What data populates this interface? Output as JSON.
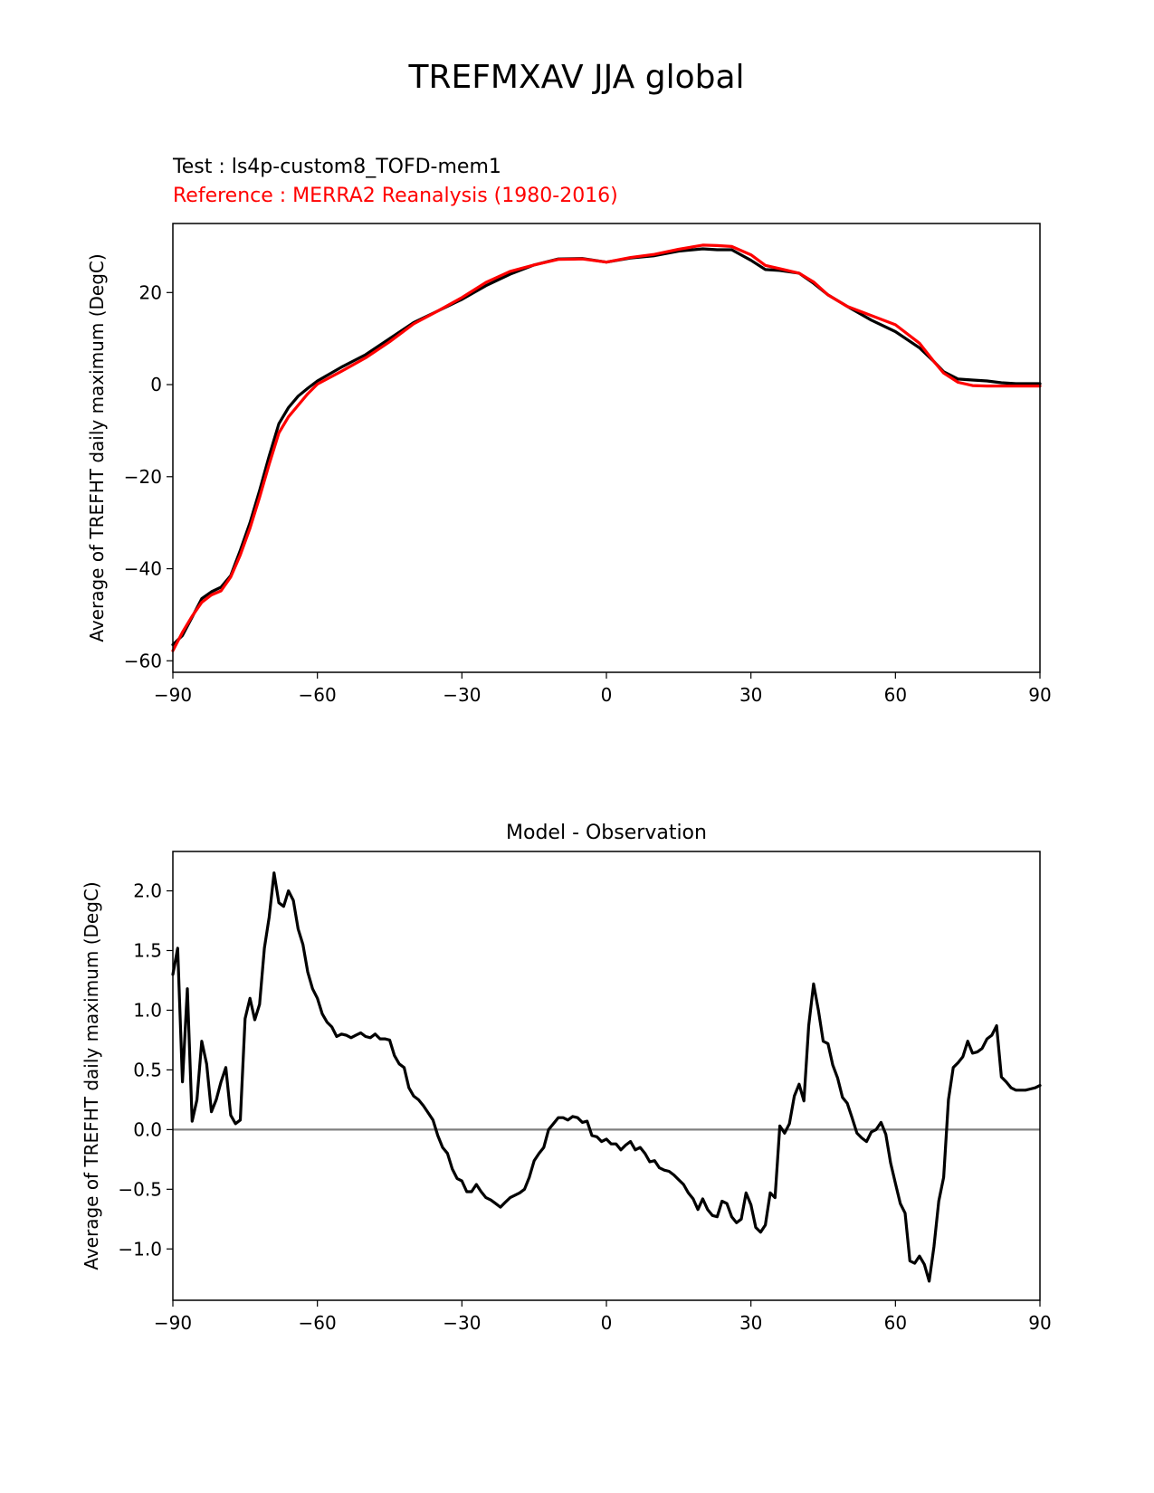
{
  "figure": {
    "title": "TREFMXAV JJA global"
  },
  "chart_data": [
    {
      "type": "line",
      "test_label": "Test : ls4p-custom8_TOFD-mem1",
      "reference_label": "Reference : MERRA2 Reanalysis (1980-2016)",
      "title": "",
      "xlabel": "",
      "ylabel": "Average of TREFHT daily maximum (DegC)",
      "xlim": [
        -90,
        90
      ],
      "ylim": [
        -62.5,
        35
      ],
      "xticks": [
        -90,
        -60,
        -30,
        0,
        30,
        60,
        90
      ],
      "yticks": [
        -60,
        -40,
        -20,
        0,
        20
      ],
      "x": [
        -90,
        -88,
        -86,
        -84,
        -82,
        -80,
        -78,
        -76,
        -74,
        -72,
        -70,
        -68,
        -66,
        -64,
        -62,
        -60,
        -55,
        -50,
        -45,
        -40,
        -35,
        -30,
        -25,
        -20,
        -15,
        -10,
        -5,
        0,
        5,
        10,
        15,
        20,
        23,
        26,
        30,
        33,
        36,
        40,
        43,
        46,
        50,
        55,
        60,
        65,
        68,
        70,
        73,
        76,
        79,
        82,
        85,
        90
      ],
      "series": [
        {
          "name": "Test",
          "color": "#000000",
          "values": [
            -56.5,
            -54.5,
            -50.5,
            -46.5,
            -45,
            -44,
            -41.5,
            -36,
            -30,
            -23,
            -15.5,
            -8.5,
            -5,
            -2.5,
            -0.8,
            0.8,
            3.8,
            6.5,
            10,
            13.5,
            16,
            18.5,
            21.5,
            24,
            26,
            27.3,
            27.4,
            26.6,
            27.5,
            28,
            29,
            29.5,
            29.3,
            29.3,
            27,
            25,
            24.8,
            24.2,
            22,
            19.5,
            17,
            14,
            11.5,
            8,
            5,
            2.8,
            1.2,
            1,
            0.8,
            0.4,
            0.2,
            0.2
          ]
        },
        {
          "name": "Reference",
          "color": "#ff0000",
          "values": [
            -57.8,
            -53.8,
            -50.3,
            -47.3,
            -45.7,
            -44.8,
            -41.8,
            -37,
            -31.2,
            -24.5,
            -17.3,
            -10.5,
            -7,
            -4.5,
            -2,
            0.1,
            2.9,
            5.8,
            9.3,
            13.2,
            16,
            18.9,
            22.2,
            24.6,
            26,
            27.2,
            27.3,
            26.6,
            27.6,
            28.3,
            29.4,
            30.3,
            30.2,
            30,
            28.2,
            25.9,
            25.2,
            24.2,
            22.3,
            19.5,
            17,
            15,
            13,
            9,
            5,
            2.5,
            0.5,
            -0.2,
            -0.3,
            -0.3,
            -0.3,
            -0.3
          ]
        }
      ]
    },
    {
      "type": "line",
      "title": "Model - Observation",
      "xlabel": "",
      "ylabel": "Average of TREFHT daily maximum (DegC)",
      "xlim": [
        -90,
        90
      ],
      "ylim": [
        -1.43,
        2.33
      ],
      "xticks": [
        -90,
        -60,
        -30,
        0,
        30,
        60,
        90
      ],
      "yticks": [
        -1.0,
        -0.5,
        0.0,
        0.5,
        1.0,
        1.5,
        2.0
      ],
      "reference_line": 0.0,
      "x": [
        -90,
        -89,
        -88,
        -87,
        -86,
        -85,
        -84,
        -83,
        -82,
        -81,
        -80,
        -79,
        -78,
        -77,
        -76,
        -75,
        -74,
        -73,
        -72,
        -71,
        -70,
        -69,
        -68,
        -67,
        -66,
        -65,
        -64,
        -63,
        -62,
        -61,
        -60,
        -59,
        -58,
        -57,
        -56,
        -55,
        -54,
        -53,
        -52,
        -51,
        -50,
        -49,
        -48,
        -47,
        -46,
        -45,
        -44,
        -43,
        -42,
        -41,
        -40,
        -39,
        -38,
        -37,
        -36,
        -35,
        -34,
        -33,
        -32,
        -31,
        -30,
        -29,
        -28,
        -27,
        -26,
        -25,
        -24,
        -23,
        -22,
        -21,
        -20,
        -19,
        -18,
        -17,
        -16,
        -15,
        -14,
        -13,
        -12,
        -11,
        -10,
        -9,
        -8,
        -7,
        -6,
        -5,
        -4,
        -3,
        -2,
        -1,
        0,
        1,
        2,
        3,
        4,
        5,
        6,
        7,
        8,
        9,
        10,
        11,
        12,
        13,
        14,
        15,
        16,
        17,
        18,
        19,
        20,
        21,
        22,
        23,
        24,
        25,
        26,
        27,
        28,
        29,
        30,
        31,
        32,
        33,
        34,
        35,
        36,
        37,
        38,
        39,
        40,
        41,
        42,
        43,
        44,
        45,
        46,
        47,
        48,
        49,
        50,
        51,
        52,
        53,
        54,
        55,
        56,
        57,
        58,
        59,
        60,
        61,
        62,
        63,
        64,
        65,
        66,
        67,
        68,
        69,
        70,
        71,
        72,
        73,
        74,
        75,
        76,
        77,
        78,
        79,
        80,
        81,
        82,
        83,
        84,
        85,
        86,
        87,
        88,
        89,
        90
      ],
      "series": [
        {
          "name": "Model - Observation",
          "color": "#000000",
          "values": [
            1.3,
            1.52,
            0.4,
            1.18,
            0.07,
            0.25,
            0.74,
            0.55,
            0.15,
            0.25,
            0.4,
            0.52,
            0.12,
            0.05,
            0.08,
            0.93,
            1.1,
            0.92,
            1.05,
            1.52,
            1.78,
            2.15,
            1.9,
            1.87,
            2.0,
            1.92,
            1.68,
            1.55,
            1.32,
            1.18,
            1.1,
            0.97,
            0.9,
            0.86,
            0.78,
            0.8,
            0.79,
            0.77,
            0.79,
            0.81,
            0.78,
            0.77,
            0.8,
            0.76,
            0.76,
            0.75,
            0.62,
            0.55,
            0.52,
            0.35,
            0.28,
            0.25,
            0.2,
            0.14,
            0.08,
            -0.05,
            -0.15,
            -0.2,
            -0.33,
            -0.41,
            -0.43,
            -0.52,
            -0.52,
            -0.46,
            -0.52,
            -0.57,
            -0.59,
            -0.62,
            -0.65,
            -0.61,
            -0.57,
            -0.55,
            -0.53,
            -0.5,
            -0.4,
            -0.26,
            -0.2,
            -0.15,
            0.0,
            0.05,
            0.1,
            0.1,
            0.08,
            0.11,
            0.1,
            0.06,
            0.07,
            -0.05,
            -0.06,
            -0.1,
            -0.08,
            -0.12,
            -0.12,
            -0.17,
            -0.13,
            -0.1,
            -0.17,
            -0.15,
            -0.2,
            -0.27,
            -0.26,
            -0.32,
            -0.34,
            -0.35,
            -0.38,
            -0.42,
            -0.46,
            -0.53,
            -0.58,
            -0.67,
            -0.58,
            -0.67,
            -0.72,
            -0.73,
            -0.6,
            -0.62,
            -0.73,
            -0.78,
            -0.75,
            -0.53,
            -0.63,
            -0.82,
            -0.86,
            -0.8,
            -0.53,
            -0.57,
            0.03,
            -0.03,
            0.05,
            0.28,
            0.38,
            0.24,
            0.87,
            1.22,
            1.0,
            0.74,
            0.72,
            0.54,
            0.43,
            0.27,
            0.22,
            0.1,
            -0.03,
            -0.07,
            -0.1,
            -0.02,
            0.0,
            0.06,
            -0.04,
            -0.28,
            -0.45,
            -0.62,
            -0.7,
            -1.1,
            -1.12,
            -1.06,
            -1.13,
            -1.27,
            -0.98,
            -0.6,
            -0.4,
            0.25,
            0.52,
            0.56,
            0.61,
            0.74,
            0.64,
            0.65,
            0.68,
            0.76,
            0.79,
            0.87,
            0.44,
            0.4,
            0.35,
            0.33,
            0.33,
            0.33,
            0.34,
            0.35,
            0.37
          ]
        }
      ]
    }
  ]
}
